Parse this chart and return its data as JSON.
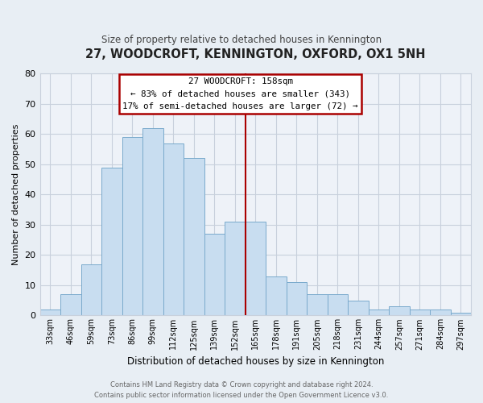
{
  "title": "27, WOODCROFT, KENNINGTON, OXFORD, OX1 5NH",
  "subtitle": "Size of property relative to detached houses in Kennington",
  "xlabel": "Distribution of detached houses by size in Kennington",
  "ylabel": "Number of detached properties",
  "bin_labels": [
    "33sqm",
    "46sqm",
    "59sqm",
    "73sqm",
    "86sqm",
    "99sqm",
    "112sqm",
    "125sqm",
    "139sqm",
    "152sqm",
    "165sqm",
    "178sqm",
    "191sqm",
    "205sqm",
    "218sqm",
    "231sqm",
    "244sqm",
    "257sqm",
    "271sqm",
    "284sqm",
    "297sqm"
  ],
  "bar_heights": [
    2,
    7,
    17,
    49,
    59,
    62,
    57,
    52,
    27,
    31,
    31,
    13,
    11,
    7,
    7,
    5,
    2,
    3,
    2,
    2,
    1
  ],
  "bar_color": "#c8ddf0",
  "bar_edge_color": "#7aaacc",
  "vline_x_index": 9.5,
  "vline_color": "#aa0000",
  "ylim": [
    0,
    80
  ],
  "yticks": [
    0,
    10,
    20,
    30,
    40,
    50,
    60,
    70,
    80
  ],
  "annotation_title": "27 WOODCROFT: 158sqm",
  "annotation_line1": "← 83% of detached houses are smaller (343)",
  "annotation_line2": "17% of semi-detached houses are larger (72) →",
  "annotation_box_color": "#ffffff",
  "annotation_box_edge": "#aa0000",
  "footer_line1": "Contains HM Land Registry data © Crown copyright and database right 2024.",
  "footer_line2": "Contains public sector information licensed under the Open Government Licence v3.0.",
  "background_color": "#e8eef4",
  "plot_bg_color": "#eef2f8",
  "grid_color": "#c8d0dc",
  "title_color": "#222222",
  "subtitle_color": "#444444",
  "footer_color": "#666666"
}
